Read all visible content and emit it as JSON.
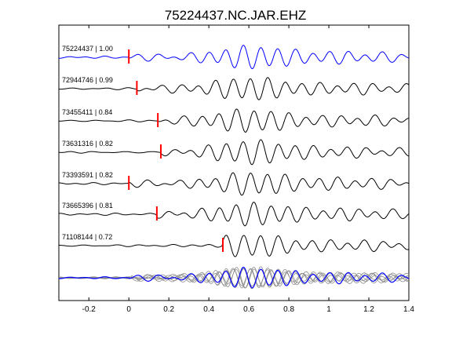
{
  "chart_data": {
    "type": "line",
    "title": "75224437.NC.JAR.EHZ",
    "xlabel": "",
    "ylabel": "",
    "xlim": [
      -0.35,
      1.4
    ],
    "x_ticks": [
      -0.2,
      0,
      0.2,
      0.4,
      0.6,
      0.8,
      1,
      1.2,
      1.4
    ],
    "x_tick_labels": [
      "-0.2",
      "0",
      "0.2",
      "0.4",
      "0.6",
      "0.8",
      "1",
      "1.2",
      "1.4"
    ],
    "grid": false,
    "legend": "none",
    "colors": {
      "reference": "#0000ff",
      "trace": "#000000",
      "pick": "#ff0000",
      "stack_gray": "#8c8c8c"
    },
    "traces": [
      {
        "id": "75224437",
        "cc": "1.00",
        "label": "75224437 | 1.00",
        "pick_time": 0.0,
        "reference": true
      },
      {
        "id": "72944746",
        "cc": "0.99",
        "label": "72944746 | 0.99",
        "pick_time": 0.04
      },
      {
        "id": "73455411",
        "cc": "0.84",
        "label": "73455411 | 0.84",
        "pick_time": 0.145
      },
      {
        "id": "73631316",
        "cc": "0.82",
        "label": "73631316 | 0.82",
        "pick_time": 0.16
      },
      {
        "id": "73393591",
        "cc": "0.82",
        "label": "73393591 | 0.82",
        "pick_time": 0.0
      },
      {
        "id": "73665396",
        "cc": "0.81",
        "label": "73665396 | 0.81",
        "pick_time": 0.14
      },
      {
        "id": "71108144",
        "cc": "0.72",
        "label": "71108144 | 0.72",
        "pick_time": 0.47
      }
    ],
    "overlay": "stack of all traces"
  }
}
